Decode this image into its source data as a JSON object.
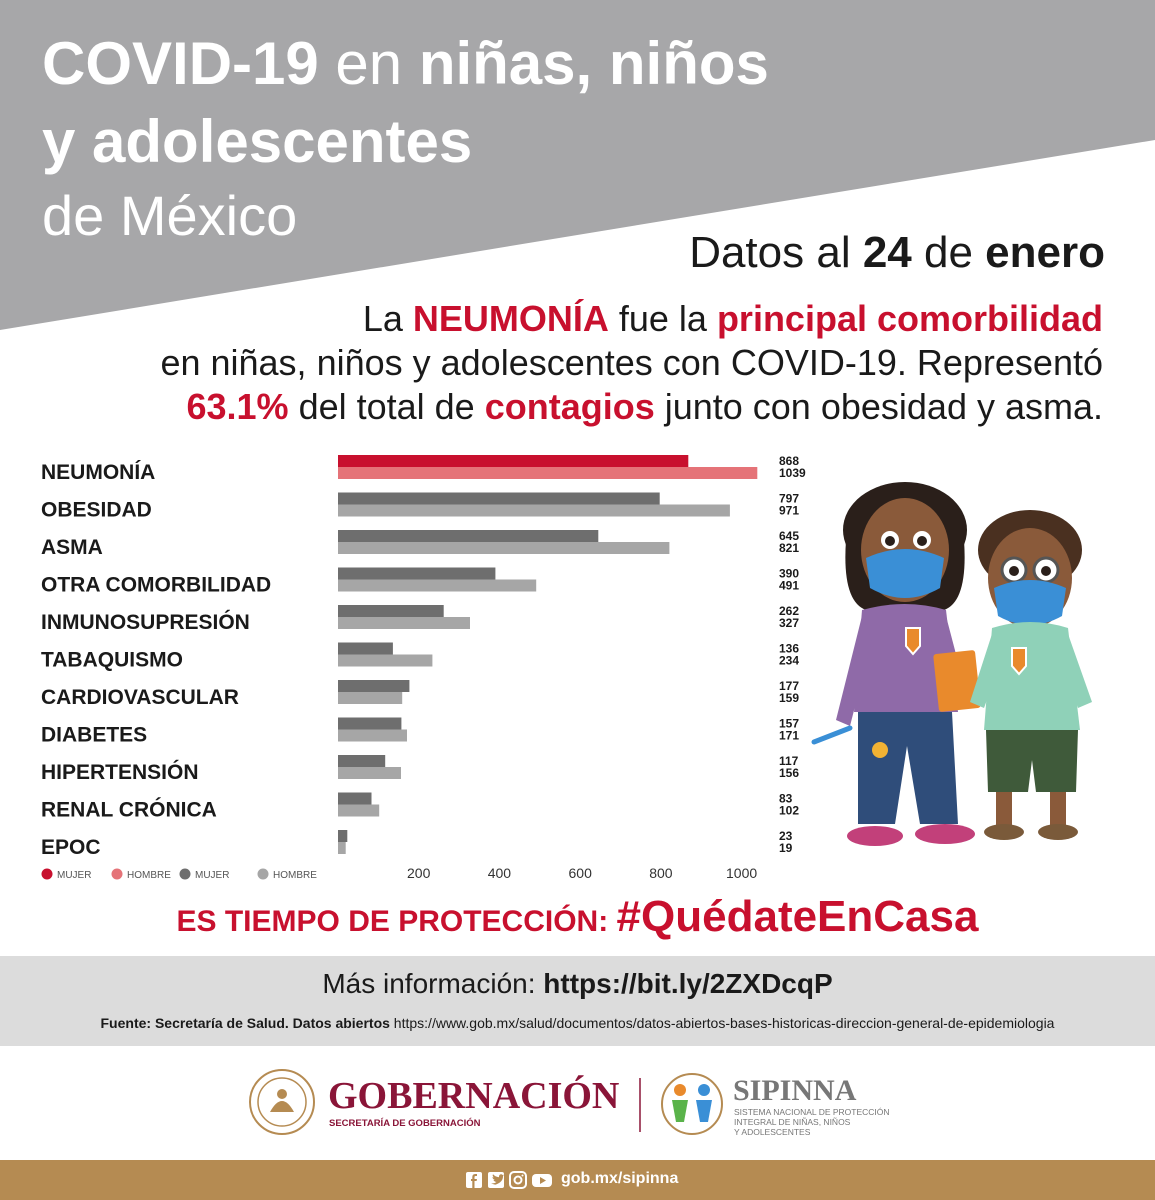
{
  "header": {
    "title_a": "COVID-19",
    "title_b": " en ",
    "title_c": "niñas, niños",
    "title_line2": "y adolescentes",
    "title_line3": "de México"
  },
  "date": {
    "prefix": "Datos al ",
    "day": "24",
    "mid": " de ",
    "month": "enero"
  },
  "intro": {
    "l1_a": "La ",
    "l1_b": "NEUMONÍA",
    "l1_c": " fue la ",
    "l1_d": "principal comorbilidad",
    "l2": "en niñas, niños y adolescentes con COVID-19. Representó",
    "l3_a": "63.1%",
    "l3_b": " del total de ",
    "l3_c": "contagios",
    "l3_d": " junto con obesidad y asma."
  },
  "chart_data": {
    "type": "bar",
    "orientation": "horizontal",
    "categories": [
      "NEUMONÍA",
      "OBESIDAD",
      "ASMA",
      "OTRA COMORBILIDAD",
      "INMUNOSUPRESIÓN",
      "TABAQUISMO",
      "CARDIOVASCULAR",
      "DIABETES",
      "HIPERTENSIÓN",
      "RENAL CRÓNICA",
      "EPOC"
    ],
    "series": [
      {
        "name": "MUJER",
        "values": [
          868,
          797,
          645,
          390,
          262,
          136,
          177,
          157,
          117,
          83,
          23
        ]
      },
      {
        "name": "HOMBRE",
        "values": [
          1039,
          971,
          821,
          491,
          327,
          234,
          159,
          171,
          156,
          102,
          19
        ]
      }
    ],
    "xticks": [
      "200",
      "400",
      "600",
      "800",
      "1000"
    ],
    "xlim": [
      0,
      1040
    ],
    "legend": [
      {
        "label": "MUJER",
        "color": "#c8102e"
      },
      {
        "label": "HOMBRE",
        "color": "#e57378"
      },
      {
        "label": "MUJER",
        "color": "#6e6e6e"
      },
      {
        "label": "HOMBRE",
        "color": "#a6a6a6"
      }
    ],
    "highlight_colors": {
      "mujer": "#c8102e",
      "hombre": "#e57378"
    },
    "base_colors": {
      "mujer": "#6e6e6e",
      "hombre": "#a6a6a6"
    },
    "legend_position": "bottom-left",
    "grid": false
  },
  "tagline": {
    "prefix": "ES TIEMPO DE PROTECCIÓN: ",
    "hashtag": "#QuédateEnCasa"
  },
  "more_info": {
    "label": "Más información: ",
    "url": "https://bit.ly/2ZXDcqP"
  },
  "source": {
    "label": "Fuente: Secretaría de Salud. Datos abiertos",
    "url": " https://www.gob.mx/salud/documentos/datos-abiertos-bases-historicas-direccion-general-de-epidemiologia"
  },
  "logos": {
    "gob_name": "GOBERNACIÓN",
    "gob_sub": "SECRETARÍA DE GOBERNACIÓN",
    "sip_name": "SIPINNA",
    "sip_sub1": "SISTEMA NACIONAL DE PROTECCIÓN",
    "sip_sub2": "INTEGRAL DE NIÑAS, NIÑOS",
    "sip_sub3": "Y ADOLESCENTES"
  },
  "footer": {
    "url": "gob.mx/sipinna"
  },
  "icons": [
    "facebook-icon",
    "twitter-icon",
    "instagram-icon",
    "youtube-icon"
  ],
  "colors": {
    "header_gray": "#a7a7a9",
    "accent_red": "#c8102e",
    "footer_gold": "#b58b52",
    "info_gray": "#dcdcdc"
  }
}
